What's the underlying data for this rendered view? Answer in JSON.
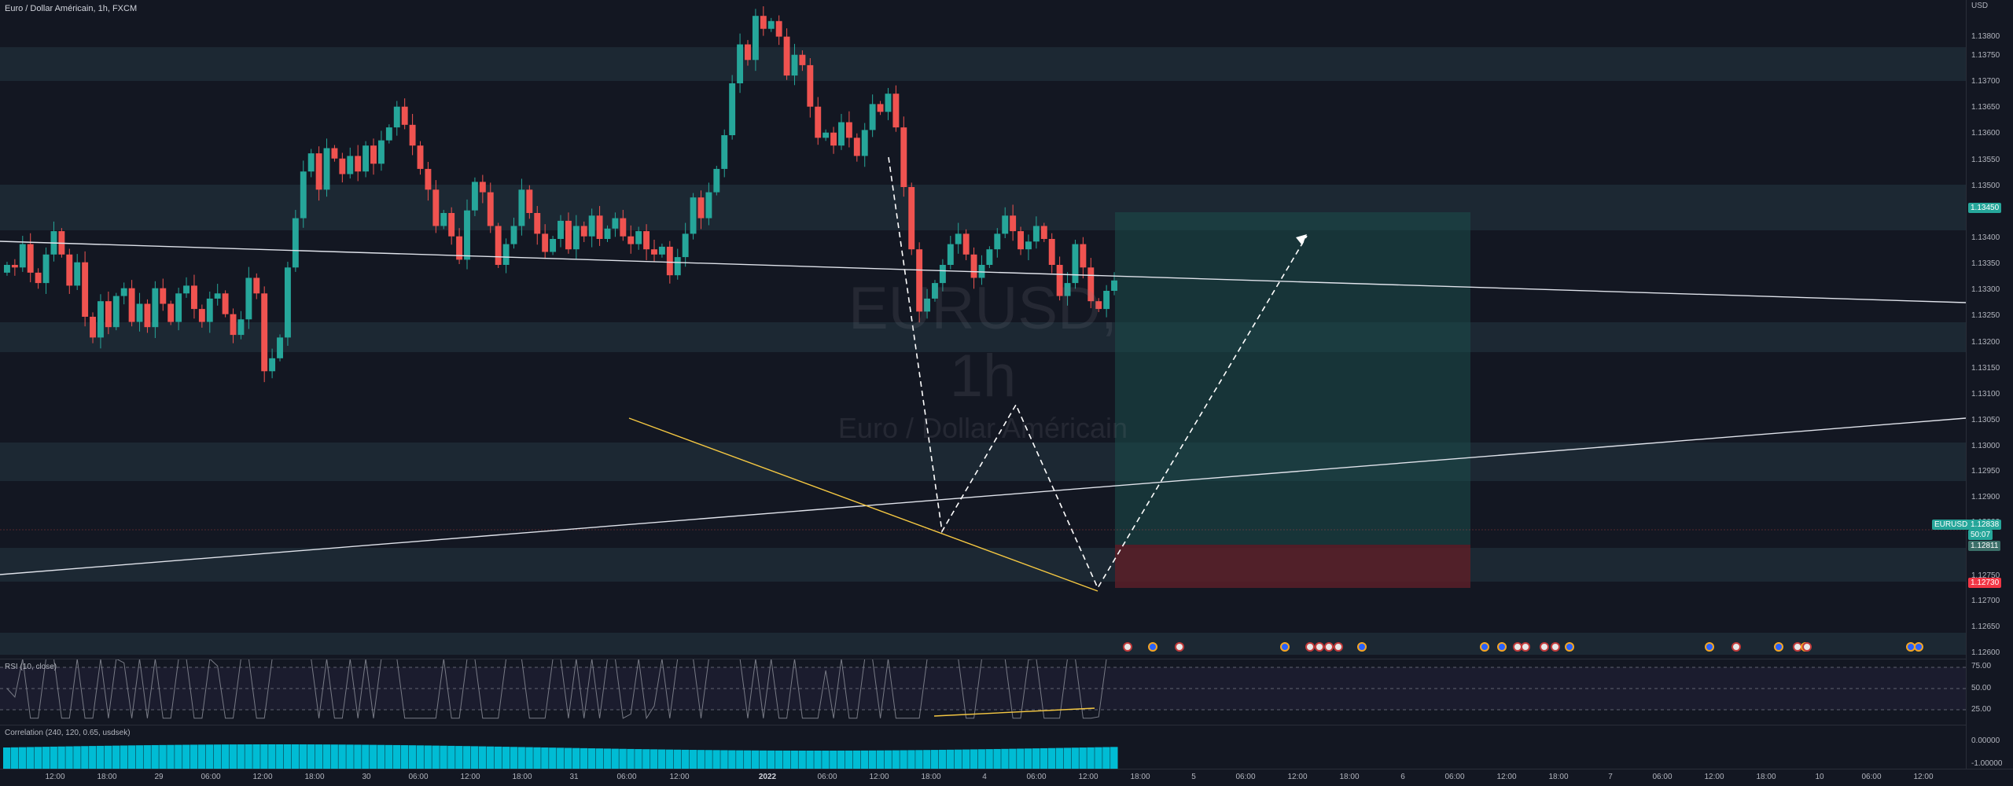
{
  "header": {
    "symbol_title": "Euro / Dollar Américain, 1h, FXCM"
  },
  "watermark": {
    "symbol": "EURUSD, 1h",
    "description": "Euro / Dollar Américain"
  },
  "colors": {
    "up": "#26a69a",
    "down": "#ef5350",
    "bg": "#131722",
    "zone": "#1f2b36",
    "rsi_line": "#787b86",
    "divergence": "#f5c842",
    "trendline": "#e0e3eb",
    "target_zone": "#1b4d4a",
    "stop_zone": "#5a1f28"
  },
  "price_axis": {
    "top_label": "USD",
    "ticks": [
      "1.13800",
      "1.13750",
      "1.13700",
      "1.13650",
      "1.13600",
      "1.13550",
      "1.13500",
      "1.13400",
      "1.13350",
      "1.13300",
      "1.13250",
      "1.13200",
      "1.13150",
      "1.13100",
      "1.13050",
      "1.13000",
      "1.12950",
      "1.12900",
      "1.12800",
      "1.12750",
      "1.12700",
      "1.12650",
      "1.12600"
    ],
    "target_price": "1.13450",
    "symbol_badge": "EURUSD",
    "current_price": "1.12838",
    "countdown": "50:07",
    "entry_price": "1.12811",
    "stop_price": "1.12730"
  },
  "rsi": {
    "title": "RSI (10, close)",
    "levels": [
      "75.00",
      "50.00",
      "25.00"
    ]
  },
  "correlation": {
    "title": "Correlation (240, 120, 0.65, usdsek)",
    "levels": [
      "0.00000",
      "-1.00000"
    ]
  },
  "time_axis": [
    "12:00",
    "18:00",
    "29",
    "06:00",
    "12:00",
    "18:00",
    "30",
    "06:00",
    "12:00",
    "18:00",
    "31",
    "06:00",
    "12:00",
    "2022",
    "06:00",
    "12:00",
    "18:00",
    "4",
    "06:00",
    "12:00",
    "18:00",
    "5",
    "06:00",
    "12:00",
    "18:00",
    "6",
    "06:00",
    "12:00",
    "18:00",
    "7",
    "06:00",
    "12:00",
    "18:00",
    "10",
    "06:00",
    "12:00"
  ],
  "events": [
    {
      "type": "flag"
    },
    {
      "type": "dot"
    },
    {
      "type": "flag"
    },
    {
      "type": "dot"
    },
    {
      "type": "flag"
    },
    {
      "type": "flag"
    },
    {
      "type": "flag"
    },
    {
      "type": "flag"
    },
    {
      "type": "dot"
    },
    {
      "type": "dot"
    },
    {
      "type": "dot"
    },
    {
      "type": "flag"
    },
    {
      "type": "flag"
    },
    {
      "type": "flag"
    },
    {
      "type": "flag"
    },
    {
      "type": "dot"
    },
    {
      "type": "dot"
    },
    {
      "type": "flag"
    },
    {
      "type": "dot"
    },
    {
      "type": "flag"
    },
    {
      "type": "dot"
    },
    {
      "type": "flag"
    },
    {
      "type": "dot"
    },
    {
      "type": "dot"
    }
  ]
}
